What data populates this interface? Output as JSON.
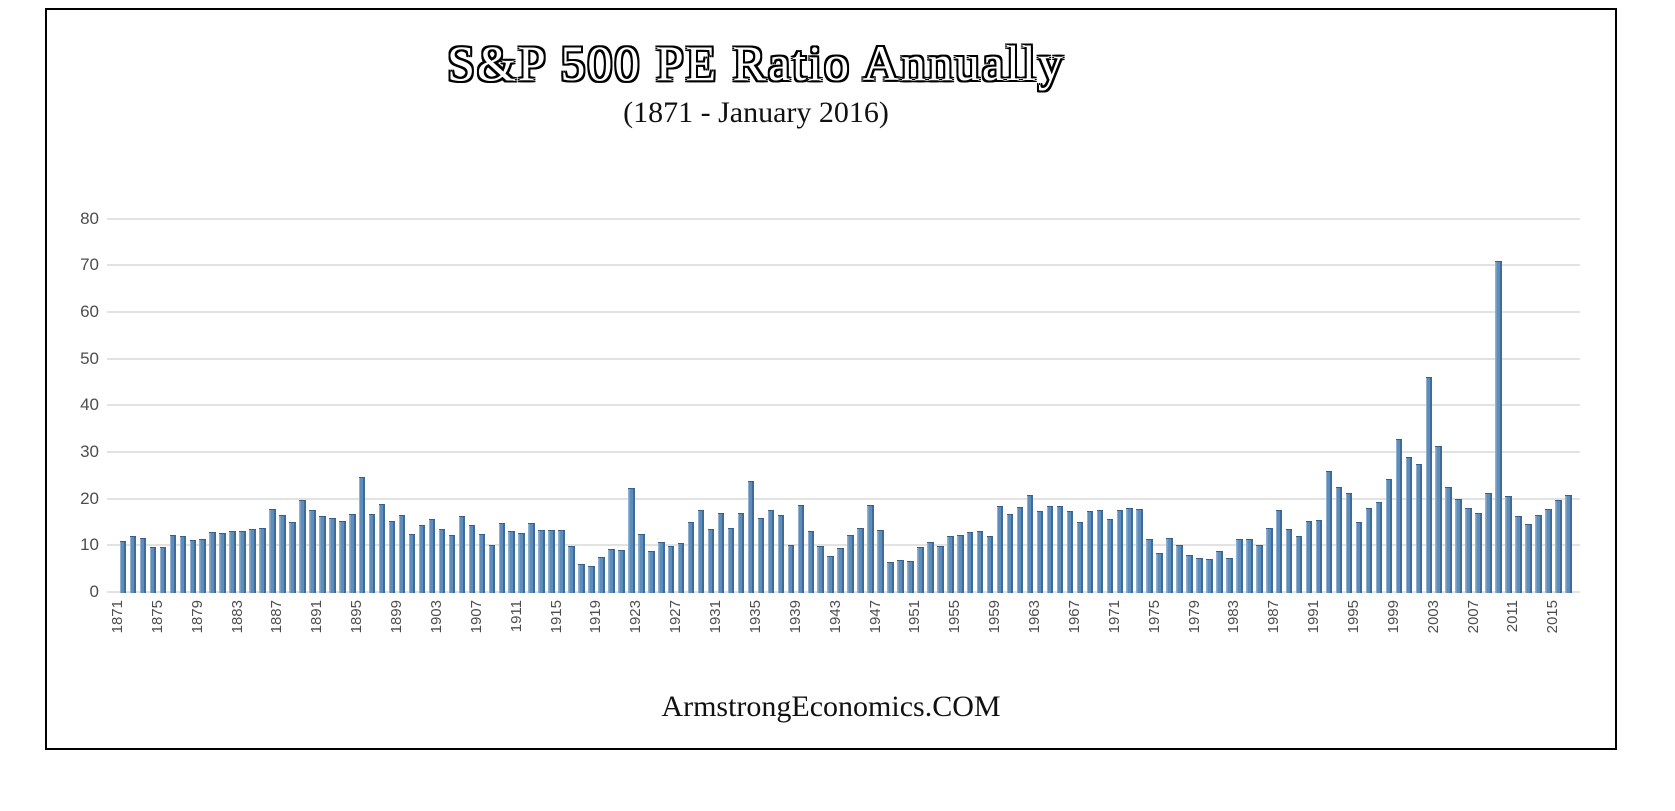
{
  "title": "S&P 500 PE Ratio Annually",
  "subtitle": "(1871 - January 2016)",
  "footer": "ArmstrongEconomics.COM",
  "colors": {
    "bar_body": "#5e8dbb",
    "bar_highlight": "#8fb2d2",
    "bar_shadow": "#3d6b9a",
    "gridline": "#e2e2e2",
    "axis_text": "#4d4d4d",
    "frame_border": "#000000",
    "background": "#ffffff"
  },
  "chart_data": {
    "type": "bar",
    "title": "S&P 500 PE Ratio Annually",
    "subtitle": "(1871 - January 2016)",
    "ylim": [
      0,
      80
    ],
    "yticks": [
      0,
      10,
      20,
      30,
      40,
      50,
      60,
      70,
      80
    ],
    "grid": true,
    "legend": false,
    "xtick_labels": [
      "1871",
      "1875",
      "1879",
      "1883",
      "1887",
      "1891",
      "1895",
      "1899",
      "1903",
      "1907",
      "1911",
      "1915",
      "1919",
      "1923",
      "1927",
      "1931",
      "1935",
      "1939",
      "1943",
      "1947",
      "1951",
      "1955",
      "1959",
      "1963",
      "1967",
      "1971",
      "1975",
      "1979",
      "1983",
      "1987",
      "1991",
      "1995",
      "1999",
      "2003",
      "2007",
      "2011",
      "2015"
    ],
    "years": [
      1871,
      1872,
      1873,
      1874,
      1875,
      1876,
      1877,
      1878,
      1879,
      1880,
      1881,
      1882,
      1883,
      1884,
      1885,
      1886,
      1887,
      1888,
      1889,
      1890,
      1891,
      1892,
      1893,
      1894,
      1895,
      1896,
      1897,
      1898,
      1899,
      1900,
      1901,
      1902,
      1903,
      1904,
      1905,
      1906,
      1907,
      1908,
      1909,
      1910,
      1911,
      1912,
      1913,
      1914,
      1915,
      1916,
      1917,
      1918,
      1919,
      1920,
      1921,
      1922,
      1923,
      1924,
      1925,
      1926,
      1927,
      1928,
      1929,
      1930,
      1931,
      1932,
      1933,
      1934,
      1935,
      1936,
      1937,
      1938,
      1939,
      1940,
      1941,
      1942,
      1943,
      1944,
      1945,
      1946,
      1947,
      1948,
      1949,
      1950,
      1951,
      1952,
      1953,
      1954,
      1955,
      1956,
      1957,
      1958,
      1959,
      1960,
      1961,
      1962,
      1963,
      1964,
      1965,
      1966,
      1967,
      1968,
      1969,
      1970,
      1971,
      1972,
      1973,
      1974,
      1975,
      1976,
      1977,
      1978,
      1979,
      1980,
      1981,
      1982,
      1983,
      1984,
      1985,
      1986,
      1987,
      1988,
      1989,
      1990,
      1991,
      1992,
      1993,
      1994,
      1995,
      1996,
      1997,
      1998,
      1999,
      2000,
      2001,
      2002,
      2003,
      2004,
      2005,
      2006,
      2007,
      2008,
      2009,
      2010,
      2011,
      2012,
      2013,
      2014,
      2015,
      2016
    ],
    "values": [
      11.0,
      12.0,
      11.6,
      9.7,
      9.7,
      12.3,
      12.1,
      11.1,
      11.3,
      12.8,
      12.7,
      13.1,
      13.0,
      13.4,
      13.7,
      17.8,
      16.6,
      15.0,
      19.8,
      17.5,
      16.2,
      15.9,
      15.3,
      16.8,
      24.6,
      16.8,
      18.9,
      15.3,
      16.6,
      12.5,
      14.4,
      15.6,
      13.4,
      12.3,
      16.3,
      14.3,
      12.5,
      10.1,
      14.8,
      13.1,
      12.6,
      14.8,
      13.2,
      13.2,
      13.3,
      9.8,
      6.1,
      5.6,
      7.6,
      9.3,
      8.9,
      22.3,
      12.5,
      8.8,
      10.7,
      9.8,
      10.5,
      15.1,
      17.5,
      13.4,
      16.9,
      13.7,
      16.9,
      23.7,
      15.8,
      17.6,
      16.4,
      10.0,
      18.6,
      13.0,
      9.9,
      7.7,
      9.4,
      12.3,
      13.7,
      18.7,
      13.3,
      6.4,
      6.9,
      6.7,
      9.6,
      10.7,
      9.9,
      12.0,
      12.3,
      12.8,
      13.0,
      12.1,
      18.4,
      16.8,
      18.2,
      20.8,
      17.3,
      18.4,
      18.4,
      17.4,
      15.1,
      17.4,
      17.5,
      15.7,
      17.5,
      17.9,
      17.8,
      11.3,
      8.3,
      11.5,
      10.0,
      8.0,
      7.3,
      7.0,
      8.7,
      7.3,
      11.3,
      11.4,
      10.1,
      13.8,
      17.6,
      13.6,
      12.1,
      15.2,
      15.5,
      25.9,
      22.5,
      21.3,
      15.1,
      18.0,
      19.3,
      24.2,
      32.7,
      28.9,
      27.5,
      46.0,
      31.2,
      22.6,
      20.0,
      17.9,
      16.9,
      21.2,
      70.9,
      20.6,
      16.2,
      14.5,
      16.6,
      17.8,
      19.7,
      20.8
    ]
  }
}
